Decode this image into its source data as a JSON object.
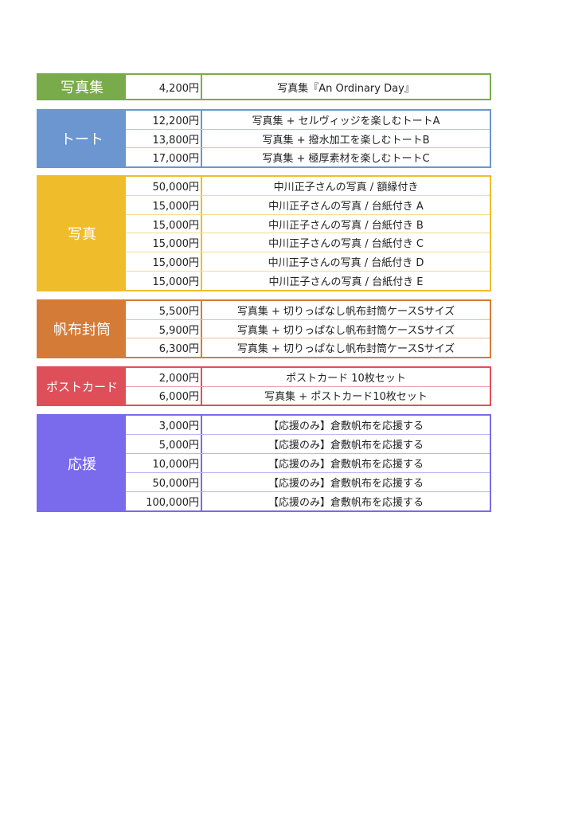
{
  "sections": [
    {
      "category": "写真集",
      "color": "#7aab4a",
      "tint": "#b9d49c",
      "items": [
        {
          "price": "4,200円",
          "description": "写真集『An Ordinary Day』"
        }
      ]
    },
    {
      "category": "トート",
      "color": "#6b96d0",
      "tint": "#b3c9e8",
      "items": [
        {
          "price": "12,200円",
          "description": "写真集 + セルヴィッジを楽しむトートA"
        },
        {
          "price": "13,800円",
          "description": "写真集 + 撥水加工を楽しむトートB"
        },
        {
          "price": "17,000円",
          "description": "写真集 + 極厚素材を楽しむトートC"
        }
      ]
    },
    {
      "category": "写真",
      "color": "#efbd2c",
      "tint": "#f6dc8e",
      "items": [
        {
          "price": "50,000円",
          "description": "中川正子さんの写真 / 額縁付き"
        },
        {
          "price": "15,000円",
          "description": "中川正子さんの写真 / 台紙付き A"
        },
        {
          "price": "15,000円",
          "description": "中川正子さんの写真 / 台紙付き B"
        },
        {
          "price": "15,000円",
          "description": "中川正子さんの写真 / 台紙付き C"
        },
        {
          "price": "15,000円",
          "description": "中川正子さんの写真 / 台紙付き D"
        },
        {
          "price": "15,000円",
          "description": "中川正子さんの写真 / 台紙付き E"
        }
      ]
    },
    {
      "category": "帆布封筒",
      "color": "#d57b38",
      "tint": "#ebbc98",
      "items": [
        {
          "price": "5,500円",
          "description": "写真集 + 切りっぱなし帆布封筒ケースSサイズ"
        },
        {
          "price": "5,900円",
          "description": "写真集 + 切りっぱなし帆布封筒ケースSサイズ"
        },
        {
          "price": "6,300円",
          "description": "写真集 + 切りっぱなし帆布封筒ケースSサイズ"
        }
      ]
    },
    {
      "category": "ポストカード",
      "color": "#df4f5a",
      "tint": "#eea3a9",
      "items": [
        {
          "price": "2,000円",
          "description": "ポストカード 10枚セット"
        },
        {
          "price": "6,000円",
          "description": "写真集 + ポストカード10枚セット"
        }
      ]
    },
    {
      "category": "応援",
      "color": "#7a6aec",
      "tint": "#bdb4f5",
      "items": [
        {
          "price": "3,000円",
          "description": "【応援のみ】倉敷帆布を応援する"
        },
        {
          "price": "5,000円",
          "description": "【応援のみ】倉敷帆布を応援する"
        },
        {
          "price": "10,000円",
          "description": "【応援のみ】倉敷帆布を応援する"
        },
        {
          "price": "50,000円",
          "description": "【応援のみ】倉敷帆布を応援する"
        },
        {
          "price": "100,000円",
          "description": "【応援のみ】倉敷帆布を応援する"
        }
      ]
    }
  ]
}
